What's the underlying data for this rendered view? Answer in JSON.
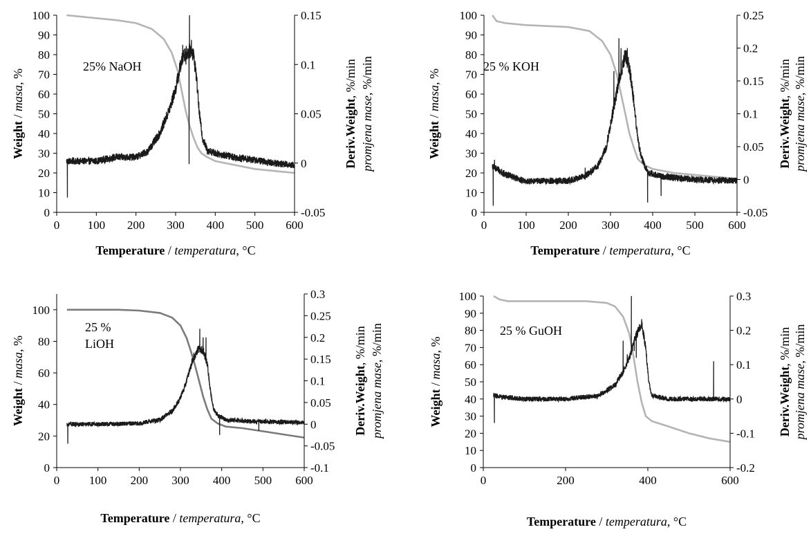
{
  "colors": {
    "weight_curve": "#b4b4b4",
    "weight_curve_dark": "#7a7a7a",
    "deriv_curve": "#1a1a1a",
    "axis": "#000000"
  },
  "chart_data": [
    {
      "type": "line",
      "annotation_lines": [
        "25% NaOH"
      ],
      "xlabel": {
        "bold": "Temperature",
        "sep": " / ",
        "italic": "temperatura",
        "unit": ", °C"
      },
      "ylabel": {
        "bold": "Weight",
        "sep": " / ",
        "italic": "masa",
        "unit": ", %"
      },
      "y2label": {
        "bold": "Deriv.Weight",
        "unit": ", %/min",
        "italic": "promjena mase",
        "unit2": ", %/min"
      },
      "xlim": [
        0,
        600
      ],
      "ylim": [
        0,
        100
      ],
      "y2lim": [
        -0.05,
        0.15
      ],
      "xticks": [
        "0",
        "100",
        "200",
        "300",
        "400",
        "500",
        "600"
      ],
      "yticks": [
        "0",
        "10",
        "20",
        "30",
        "40",
        "50",
        "60",
        "70",
        "80",
        "90",
        "100"
      ],
      "y2ticks": [
        "-0.05",
        "0",
        "0.05",
        "0.1",
        "0.15"
      ],
      "weight": {
        "x": [
          25,
          50,
          100,
          150,
          200,
          240,
          270,
          290,
          305,
          315,
          325,
          335,
          345,
          355,
          365,
          380,
          400,
          450,
          500,
          550,
          600
        ],
        "y": [
          100,
          99.5,
          98.5,
          97.5,
          96,
          93,
          88,
          81,
          72,
          62,
          52,
          44,
          38,
          33,
          30,
          28,
          26,
          24,
          22,
          21,
          20
        ]
      },
      "deriv": {
        "noise": 0.0035,
        "base": [
          [
            25,
            0.002
          ],
          [
            100,
            0.002
          ],
          [
            150,
            0.006
          ],
          [
            200,
            0.006
          ],
          [
            230,
            0.012
          ],
          [
            260,
            0.03
          ],
          [
            285,
            0.055
          ],
          [
            300,
            0.075
          ],
          [
            310,
            0.095
          ],
          [
            320,
            0.11
          ],
          [
            330,
            0.112
          ],
          [
            340,
            0.115
          ],
          [
            345,
            0.11
          ],
          [
            352,
            0.09
          ],
          [
            360,
            0.05
          ],
          [
            368,
            0.025
          ],
          [
            380,
            0.013
          ],
          [
            400,
            0.01
          ],
          [
            450,
            0.006
          ],
          [
            500,
            0.003
          ],
          [
            550,
            0.0
          ],
          [
            600,
            -0.002
          ]
        ],
        "spikes": [
          [
            27,
            -0.035
          ],
          [
            335,
            0.15
          ],
          [
            334,
            -0.001
          ],
          [
            340,
            0.125
          ],
          [
            326,
            0.1
          ],
          [
            318,
            0.12
          ]
        ]
      }
    },
    {
      "type": "line",
      "annotation_lines": [
        "25 % KOH"
      ],
      "xlabel": {
        "bold": "Temperature",
        "sep": " / ",
        "italic": "temperatura",
        "unit": ", °C"
      },
      "ylabel": {
        "bold": "Weight",
        "sep": " / ",
        "italic": "masa",
        "unit": ", %"
      },
      "y2label": {
        "bold": "Deriv.Weight",
        "unit": ", %/min",
        "italic": "promjena mase",
        "unit2": ", %/min"
      },
      "xlim": [
        0,
        600
      ],
      "ylim": [
        0,
        100
      ],
      "y2lim": [
        -0.05,
        0.25
      ],
      "xticks": [
        "0",
        "100",
        "200",
        "300",
        "400",
        "500",
        "600"
      ],
      "yticks": [
        "0",
        "10",
        "20",
        "30",
        "40",
        "50",
        "60",
        "70",
        "80",
        "90",
        "100"
      ],
      "y2ticks": [
        "-0.05",
        "0",
        "0.05",
        "0.1",
        "0.15",
        "0.2",
        "0.25"
      ],
      "weight": {
        "x": [
          20,
          30,
          50,
          100,
          150,
          200,
          250,
          280,
          300,
          315,
          325,
          335,
          345,
          355,
          365,
          380,
          400,
          450,
          500,
          550,
          600
        ],
        "y": [
          100,
          97,
          96,
          95,
          94.5,
          94,
          92,
          87,
          80,
          70,
          60,
          50,
          40,
          33,
          27,
          24,
          22,
          20,
          19,
          18,
          17
        ]
      },
      "deriv": {
        "noise": 0.005,
        "base": [
          [
            20,
            0.02
          ],
          [
            50,
            0.008
          ],
          [
            100,
            -0.003
          ],
          [
            150,
            -0.002
          ],
          [
            200,
            -0.002
          ],
          [
            240,
            0.005
          ],
          [
            270,
            0.02
          ],
          [
            290,
            0.05
          ],
          [
            305,
            0.1
          ],
          [
            320,
            0.15
          ],
          [
            335,
            0.19
          ],
          [
            345,
            0.17
          ],
          [
            355,
            0.12
          ],
          [
            365,
            0.06
          ],
          [
            375,
            0.03
          ],
          [
            390,
            0.01
          ],
          [
            420,
            0.005
          ],
          [
            500,
            0.0
          ],
          [
            600,
            -0.002
          ]
        ],
        "spikes": [
          [
            22,
            -0.04
          ],
          [
            25,
            0.03
          ],
          [
            308,
            0.165
          ],
          [
            320,
            0.215
          ],
          [
            325,
            0.2
          ],
          [
            340,
            0.2
          ],
          [
            388,
            -0.035
          ],
          [
            420,
            -0.025
          ],
          [
            240,
            0.018
          ]
        ]
      }
    },
    {
      "type": "line",
      "annotation_lines": [
        "25 %",
        "LiOH"
      ],
      "xlabel": {
        "bold": "Temperature",
        "sep": " / ",
        "italic": "temperatura",
        "unit": ", °C"
      },
      "ylabel": {
        "bold": "Weight",
        "sep": " / ",
        "italic": "masa",
        "unit": ", %"
      },
      "y2label": {
        "bold": "Deriv.Weight",
        "unit": ", %/min",
        "italic": "promjena mase",
        "unit2": ", %/min"
      },
      "xlim": [
        0,
        600
      ],
      "ylim": [
        0,
        110
      ],
      "y2lim": [
        -0.1,
        0.3
      ],
      "xticks": [
        "0",
        "100",
        "200",
        "300",
        "400",
        "500",
        "600"
      ],
      "yticks": [
        "0",
        "20",
        "40",
        "60",
        "80",
        "100"
      ],
      "y2ticks": [
        "-0.1",
        "-0.05",
        "0",
        "0.05",
        "0.1",
        "0.15",
        "0.2",
        "0.25",
        "0.3"
      ],
      "weight": {
        "x": [
          25,
          50,
          100,
          150,
          200,
          250,
          280,
          300,
          315,
          325,
          335,
          345,
          355,
          365,
          375,
          390,
          410,
          450,
          500,
          550,
          600
        ],
        "y": [
          100,
          100,
          100,
          100,
          99.5,
          98,
          95,
          90,
          82,
          74,
          65,
          55,
          45,
          37,
          31,
          28,
          26,
          25,
          23,
          21,
          19
        ]
      },
      "deriv": {
        "noise": 0.005,
        "base": [
          [
            25,
            0.0
          ],
          [
            100,
            0.0
          ],
          [
            200,
            0.002
          ],
          [
            250,
            0.01
          ],
          [
            280,
            0.03
          ],
          [
            300,
            0.06
          ],
          [
            315,
            0.1
          ],
          [
            330,
            0.15
          ],
          [
            345,
            0.175
          ],
          [
            355,
            0.17
          ],
          [
            365,
            0.14
          ],
          [
            372,
            0.08
          ],
          [
            380,
            0.035
          ],
          [
            390,
            0.02
          ],
          [
            410,
            0.01
          ],
          [
            450,
            0.008
          ],
          [
            500,
            0.006
          ],
          [
            600,
            0.004
          ]
        ],
        "spikes": [
          [
            27,
            -0.045
          ],
          [
            347,
            0.22
          ],
          [
            355,
            0.2
          ],
          [
            362,
            0.2
          ],
          [
            395,
            -0.025
          ],
          [
            490,
            -0.015
          ]
        ]
      }
    },
    {
      "type": "line",
      "annotation_lines": [
        "25 % GuOH"
      ],
      "xlabel": {
        "bold": "Temperature",
        "sep": " / ",
        "italic": "temperatura",
        "unit": ", °C"
      },
      "ylabel": {
        "bold": "Weight",
        "sep": " / ",
        "italic": "masa",
        "unit": ", %"
      },
      "y2label": {
        "bold": "Deriv.Weight",
        "unit": ", %/min",
        "italic": "promjena mase",
        "unit2": ", %/min"
      },
      "xlim": [
        0,
        600
      ],
      "ylim": [
        0,
        100
      ],
      "y2lim": [
        -0.2,
        0.3
      ],
      "xticks": [
        "0",
        "200",
        "400",
        "600"
      ],
      "yticks": [
        "0",
        "10",
        "20",
        "30",
        "40",
        "50",
        "60",
        "70",
        "80",
        "90",
        "100"
      ],
      "y2ticks": [
        "-0.2",
        "-0.1",
        "0",
        "0.1",
        "0.2",
        "0.3"
      ],
      "weight": {
        "x": [
          25,
          40,
          60,
          100,
          150,
          200,
          250,
          300,
          320,
          340,
          355,
          365,
          375,
          385,
          395,
          410,
          450,
          500,
          550,
          600
        ],
        "y": [
          100,
          98,
          97,
          97,
          97,
          97,
          97,
          96,
          94,
          88,
          78,
          65,
          50,
          38,
          30,
          27,
          24,
          20,
          17,
          15
        ]
      },
      "deriv": {
        "noise": 0.007,
        "base": [
          [
            25,
            0.01
          ],
          [
            50,
            0.005
          ],
          [
            100,
            0.0
          ],
          [
            200,
            0.0
          ],
          [
            280,
            0.01
          ],
          [
            320,
            0.04
          ],
          [
            340,
            0.08
          ],
          [
            355,
            0.12
          ],
          [
            370,
            0.18
          ],
          [
            385,
            0.22
          ],
          [
            395,
            0.15
          ],
          [
            402,
            0.05
          ],
          [
            410,
            0.01
          ],
          [
            450,
            0.0
          ],
          [
            600,
            0.0
          ]
        ],
        "spikes": [
          [
            27,
            -0.07
          ],
          [
            340,
            0.17
          ],
          [
            350,
            0.13
          ],
          [
            360,
            0.3
          ],
          [
            367,
            0.14
          ],
          [
            372,
            0.12
          ],
          [
            560,
            0.11
          ]
        ]
      }
    }
  ]
}
